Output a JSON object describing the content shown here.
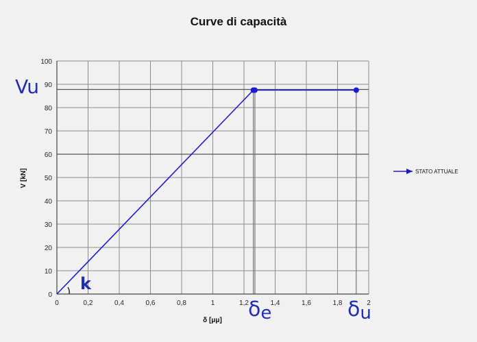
{
  "chart_data": {
    "type": "line",
    "title": "Curve di capacità",
    "xlabel": "δ [μμ]",
    "ylabel": "V [kN]",
    "xlim": [
      0,
      2
    ],
    "ylim": [
      0,
      100
    ],
    "x_ticks": [
      "0",
      "0,2",
      "0,4",
      "0,6",
      "0,8",
      "1",
      "1,2",
      "1,4",
      "1,6",
      "1,8",
      "2"
    ],
    "y_ticks": [
      "0",
      "10",
      "20",
      "30",
      "40",
      "50",
      "60",
      "70",
      "80",
      "90",
      "100"
    ],
    "grid": true,
    "legend_position": "right",
    "series": [
      {
        "name": "STATO ATTUALE",
        "color": "#1a1ad0",
        "x": [
          0,
          1.26,
          1.27,
          1.92
        ],
        "y": [
          0,
          87.5,
          87.5,
          87.5
        ]
      }
    ],
    "reference_lines": {
      "horizontal": [
        60,
        87.8
      ],
      "vertical": [
        1.26,
        1.27,
        1.92
      ]
    },
    "annotations": {
      "vu": "Vu",
      "k": "k",
      "delta_e": "δ",
      "delta_e_sub": "e",
      "delta_u": "δ",
      "delta_u_sub": "u"
    }
  }
}
